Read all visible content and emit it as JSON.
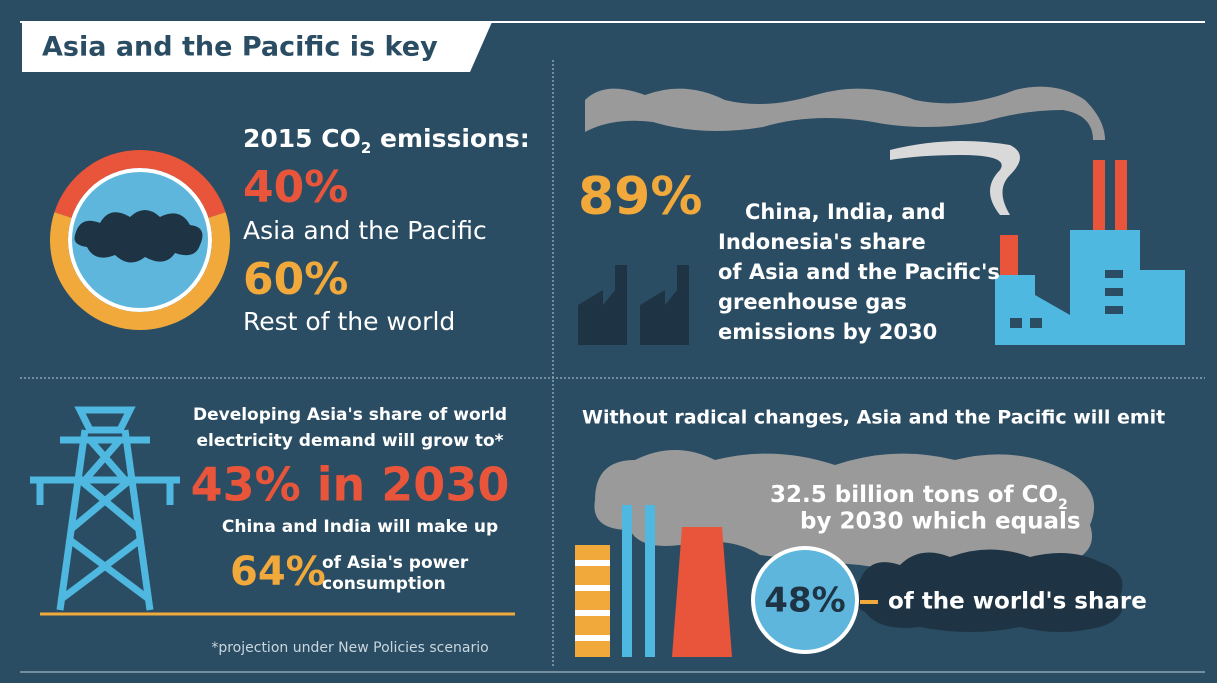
{
  "header": {
    "title": "Asia and the Pacific is key"
  },
  "emissions": {
    "heading": "2015 CO",
    "heading_sub": "2",
    "heading_post": " emissions:",
    "items": [
      {
        "value": 40,
        "label": "40%",
        "text": "Asia and the Pacific",
        "color": "#e8553a"
      },
      {
        "value": 60,
        "label": "60%",
        "text": "Rest of the world",
        "color": "#f2a93b"
      }
    ]
  },
  "share": {
    "figure": "89%",
    "lines": [
      "China, India, and",
      "Indonesia's share",
      "of Asia and the Pacific's",
      "greenhouse gas",
      "emissions by 2030"
    ]
  },
  "electricity": {
    "lines": [
      "Developing Asia's share of world",
      "electricity demand will grow to*"
    ],
    "headline": "43% in 2030",
    "subline": "China and India will make up",
    "figure": "64%",
    "figure_lines": [
      "of Asia's power",
      "consumption"
    ],
    "footnote": "*projection under New Policies scenario"
  },
  "emit": {
    "heading": "Without radical changes, Asia and the Pacific will emit",
    "amount": "32.5 billion tons of CO",
    "amount_sub": "2",
    "amount_post": "by 2030 which equals",
    "figure": "48%",
    "figure_text": "of the world's share"
  }
}
